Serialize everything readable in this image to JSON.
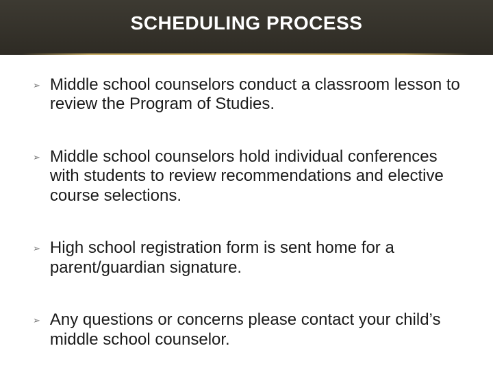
{
  "slide": {
    "title": "SCHEDULING PROCESS",
    "title_fontsize": 28,
    "title_color": "#ffffff",
    "header_bg_top": "#3d3a32",
    "header_bg_bottom": "#2e2b24",
    "body_bg": "#ffffff",
    "divider_color": "#d4b86a",
    "bullet_marker": "➢",
    "bullet_marker_color": "#6b6b6b",
    "bullet_fontsize": 24,
    "bullet_color": "#1a1a1a",
    "bullets": [
      {
        "text": "Middle school counselors conduct a classroom lesson to review the Program of Studies."
      },
      {
        "text": "Middle school counselors hold individual conferences with students to review recommendations and elective course selections."
      },
      {
        "text": "High school registration form is sent home for a parent/guardian signature."
      },
      {
        "text": "Any questions or concerns please contact your child’s middle school counselor."
      }
    ]
  }
}
